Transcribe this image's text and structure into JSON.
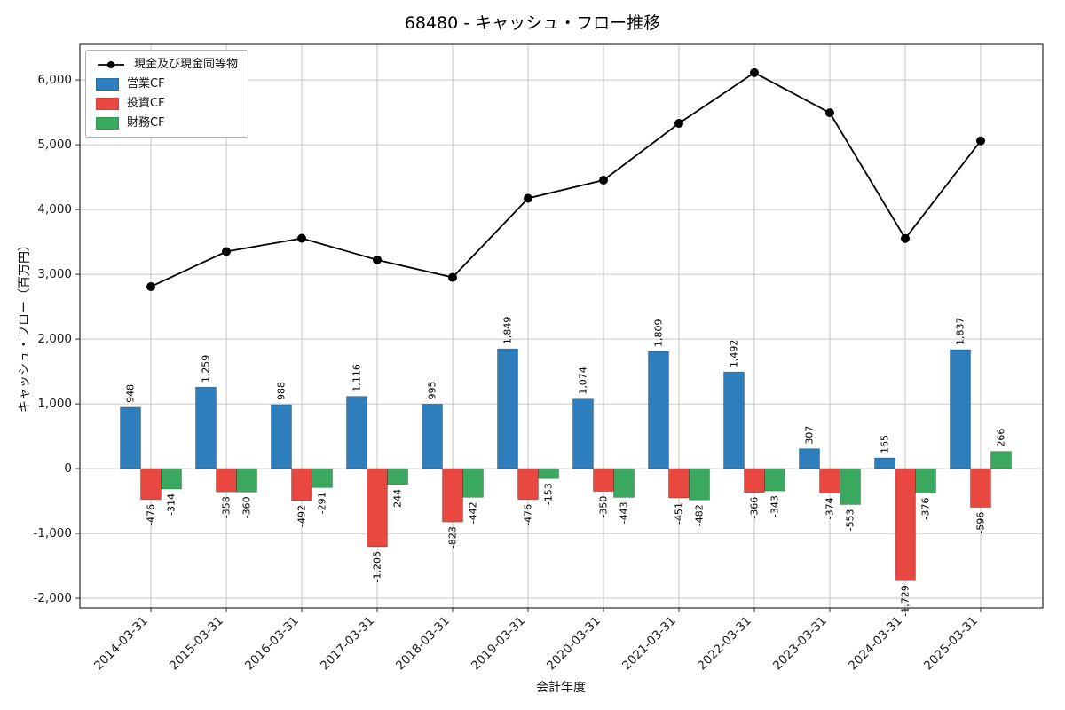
{
  "chart_data": {
    "type": "bar+line",
    "title": "68480 - キャッシュ・フロー推移",
    "xlabel": "会計年度",
    "ylabel": "キャッシュ・フロー（百万円）",
    "categories": [
      "2014-03-31",
      "2015-03-31",
      "2016-03-31",
      "2017-03-31",
      "2018-03-31",
      "2019-03-31",
      "2020-03-31",
      "2021-03-31",
      "2022-03-31",
      "2023-03-31",
      "2024-03-31",
      "2025-03-31"
    ],
    "series": [
      {
        "key": "operating-cf",
        "name": "営業CF",
        "type": "bar",
        "color": "#2e7ebd",
        "values": [
          948,
          1259,
          988,
          1116,
          995,
          1849,
          1074,
          1809,
          1492,
          307,
          165,
          1837
        ]
      },
      {
        "key": "investing-cf",
        "name": "投資CF",
        "type": "bar",
        "color": "#e8483f",
        "values": [
          -476,
          -358,
          -492,
          -1205,
          -823,
          -476,
          -350,
          -451,
          -366,
          -374,
          -1729,
          -596
        ]
      },
      {
        "key": "financing-cf",
        "name": "財務CF",
        "type": "bar",
        "color": "#3aa85e",
        "values": [
          -314,
          -360,
          -291,
          -244,
          -442,
          -153,
          -443,
          -482,
          -343,
          -553,
          -376,
          266
        ]
      },
      {
        "key": "cash-equivalents",
        "name": "現金及び現金同等物",
        "type": "line",
        "color": "#000000",
        "values": [
          2810,
          3351,
          3556,
          3223,
          2953,
          4173,
          4454,
          5330,
          6113,
          5493,
          3553,
          5060
        ]
      }
    ],
    "ylim": [
      -2150,
      6550
    ],
    "yticks": [
      -2000,
      -1000,
      0,
      1000,
      2000,
      3000,
      4000,
      5000,
      6000
    ],
    "grid": true,
    "legend_position": "upper-left"
  }
}
